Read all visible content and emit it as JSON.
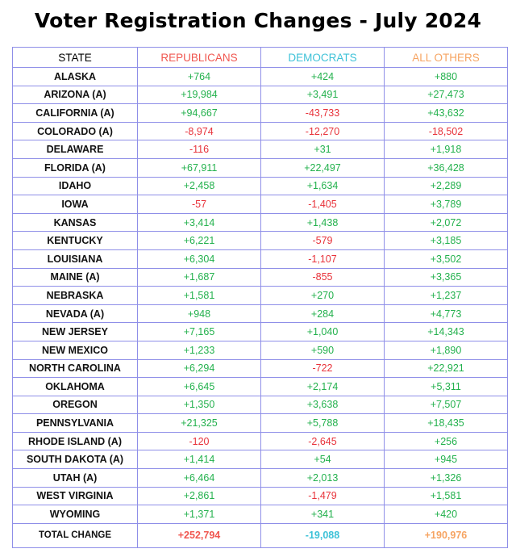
{
  "title": "Voter Registration Changes - July 2024",
  "headers": {
    "state": "STATE",
    "republicans": "REPUBLICANS",
    "democrats": "DEMOCRATS",
    "others": "ALL OTHERS"
  },
  "rows": [
    {
      "state": "ALASKA",
      "rep": "+764",
      "dem": "+424",
      "oth": "+880"
    },
    {
      "state": "ARIZONA (A)",
      "rep": "+19,984",
      "dem": "+3,491",
      "oth": "+27,473"
    },
    {
      "state": "CALIFORNIA (A)",
      "rep": "+94,667",
      "dem": "-43,733",
      "oth": "+43,632"
    },
    {
      "state": "COLORADO (A)",
      "rep": "-8,974",
      "dem": "-12,270",
      "oth": "-18,502"
    },
    {
      "state": "DELAWARE",
      "rep": "-116",
      "dem": "+31",
      "oth": "+1,918"
    },
    {
      "state": "FLORIDA (A)",
      "rep": "+67,911",
      "dem": "+22,497",
      "oth": "+36,428"
    },
    {
      "state": "IDAHO",
      "rep": "+2,458",
      "dem": "+1,634",
      "oth": "+2,289"
    },
    {
      "state": "IOWA",
      "rep": "-57",
      "dem": "-1,405",
      "oth": "+3,789"
    },
    {
      "state": "KANSAS",
      "rep": "+3,414",
      "dem": "+1,438",
      "oth": "+2,072"
    },
    {
      "state": "KENTUCKY",
      "rep": "+6,221",
      "dem": "-579",
      "oth": "+3,185"
    },
    {
      "state": "LOUISIANA",
      "rep": "+6,304",
      "dem": "-1,107",
      "oth": "+3,502"
    },
    {
      "state": "MAINE (A)",
      "rep": "+1,687",
      "dem": "-855",
      "oth": "+3,365"
    },
    {
      "state": "NEBRASKA",
      "rep": "+1,581",
      "dem": "+270",
      "oth": "+1,237"
    },
    {
      "state": "NEVADA (A)",
      "rep": "+948",
      "dem": "+284",
      "oth": "+4,773"
    },
    {
      "state": "NEW JERSEY",
      "rep": "+7,165",
      "dem": "+1,040",
      "oth": "+14,343"
    },
    {
      "state": "NEW MEXICO",
      "rep": "+1,233",
      "dem": "+590",
      "oth": "+1,890"
    },
    {
      "state": "NORTH CAROLINA",
      "rep": "+6,294",
      "dem": "-722",
      "oth": "+22,921"
    },
    {
      "state": "OKLAHOMA",
      "rep": "+6,645",
      "dem": "+2,174",
      "oth": "+5,311"
    },
    {
      "state": "OREGON",
      "rep": "+1,350",
      "dem": "+3,638",
      "oth": "+7,507"
    },
    {
      "state": "PENNSYLVANIA",
      "rep": "+21,325",
      "dem": "+5,788",
      "oth": "+18,435"
    },
    {
      "state": "RHODE ISLAND (A)",
      "rep": "-120",
      "dem": "-2,645",
      "oth": "+256"
    },
    {
      "state": "SOUTH DAKOTA (A)",
      "rep": "+1,414",
      "dem": "+54",
      "oth": "+945"
    },
    {
      "state": "UTAH (A)",
      "rep": "+6,464",
      "dem": "+2,013",
      "oth": "+1,326"
    },
    {
      "state": "WEST VIRGINIA",
      "rep": "+2,861",
      "dem": "-1,479",
      "oth": "+1,581"
    },
    {
      "state": "WYOMING",
      "rep": "+1,371",
      "dem": "+341",
      "oth": "+420"
    }
  ],
  "total": {
    "label": "TOTAL CHANGE",
    "rep": "+252,794",
    "dem": "-19,088",
    "oth": "+190,976"
  },
  "colors": {
    "positive": "#23b14d",
    "negative": "#e8323a",
    "republicans": "#f0564f",
    "democrats": "#3ec2d8",
    "others": "#f6a462",
    "grid": "#8f8fe8"
  }
}
